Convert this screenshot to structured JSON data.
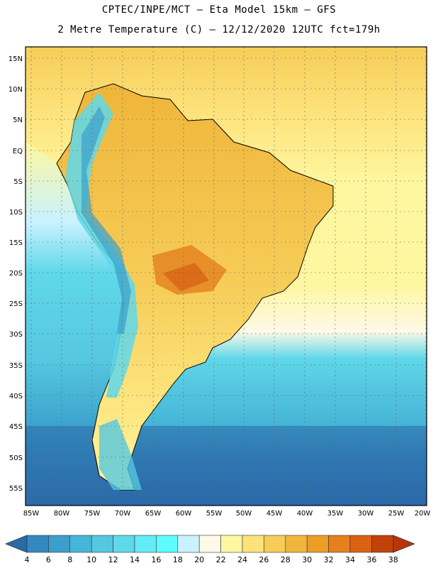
{
  "header": {
    "line1": "CPTEC/INPE/MCT –  Eta Model 15km – GFS",
    "line2": "2 Metre Temperature (C) – 12/12/2020 12UTC fct=179h"
  },
  "axes": {
    "lat_labels": [
      "15N",
      "10N",
      "5N",
      "EQ",
      "5S",
      "10S",
      "15S",
      "20S",
      "25S",
      "30S",
      "35S",
      "40S",
      "45S",
      "50S",
      "55S"
    ],
    "lon_labels": [
      "85W",
      "80W",
      "75W",
      "70W",
      "65W",
      "60W",
      "55W",
      "50W",
      "45W",
      "40W",
      "35W",
      "30W",
      "25W",
      "20W"
    ]
  },
  "colorbar": {
    "labels": [
      "4",
      "6",
      "8",
      "10",
      "12",
      "14",
      "16",
      "18",
      "20",
      "22",
      "24",
      "26",
      "28",
      "30",
      "32",
      "34",
      "36",
      "38"
    ],
    "colors": [
      "#2b6aa8",
      "#3487bf",
      "#3a9fcc",
      "#46b6d8",
      "#55c7e0",
      "#5fd8ea",
      "#62ecf7",
      "#5ffcff",
      "#c9f2ff",
      "#fef9e6",
      "#fef7a0",
      "#fde27a",
      "#f6cd58",
      "#f0b53a",
      "#eb9d24",
      "#e4801d",
      "#d96313",
      "#c24108",
      "#b9340a"
    ]
  }
}
